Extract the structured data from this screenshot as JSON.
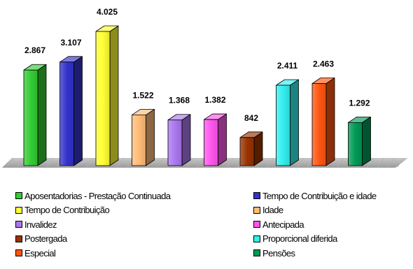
{
  "chart_data": {
    "type": "bar",
    "title": "",
    "xlabel": "",
    "ylabel": "",
    "ylim": [
      0,
      4025
    ],
    "grid": false,
    "legend_position": "bottom",
    "categories": [
      "Aposentadorias - Prestação Continuada",
      "Tempo de Contribuição e idade",
      "Tempo de Contribuição",
      "Idade",
      "Invalidez",
      "Antecipada",
      "Postergada",
      "Proporcional diferida",
      "Especial",
      "Pensões"
    ],
    "values": [
      2867,
      3107,
      4025,
      1522,
      1368,
      1382,
      842,
      2411,
      2463,
      1292
    ],
    "data_labels": [
      "2.867",
      "3.107",
      "4.025",
      "1.522",
      "1.368",
      "1.382",
      "842",
      "2.411",
      "2.463",
      "1.292"
    ],
    "colors": [
      "#33cc33",
      "#3333cc",
      "#ffff33",
      "#ffbb77",
      "#aa77ee",
      "#ff55ee",
      "#993300",
      "#33eeee",
      "#ff5511",
      "#009955"
    ]
  }
}
